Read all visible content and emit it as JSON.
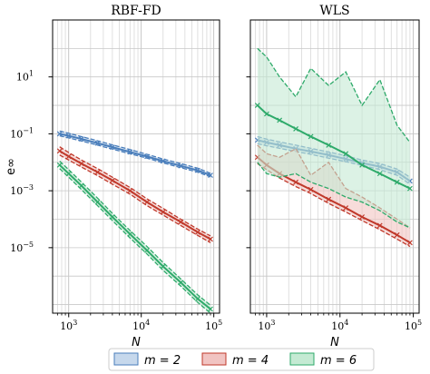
{
  "chart_data": [
    {
      "type": "line",
      "title": "RBF-FD",
      "xlabel": "N",
      "ylabel": "e∞",
      "xscale": "log",
      "yscale": "log",
      "xlim": [
        600,
        120000
      ],
      "ylim": [
        5e-08,
        1000
      ],
      "grid": true,
      "x": [
        750,
        1000,
        1500,
        2500,
        4000,
        7000,
        12000,
        20000,
        35000,
        60000,
        90000
      ],
      "series": [
        {
          "name": "m = 2",
          "color": "#4a7ebb",
          "values": [
            0.1,
            0.085,
            0.066,
            0.047,
            0.034,
            0.023,
            0.016,
            0.011,
            0.0075,
            0.0052,
            0.0035
          ],
          "lower": [
            0.085,
            0.072,
            0.056,
            0.04,
            0.029,
            0.02,
            0.014,
            0.0095,
            0.0065,
            0.0045,
            0.0031
          ],
          "upper": [
            0.125,
            0.105,
            0.08,
            0.057,
            0.041,
            0.028,
            0.019,
            0.013,
            0.009,
            0.0062,
            0.0041
          ]
        },
        {
          "name": "m = 4",
          "color": "#c0392b",
          "values": [
            0.025,
            0.016,
            0.009,
            0.0045,
            0.0023,
            0.001,
            0.0004,
            0.00018,
            8e-05,
            3.5e-05,
            2e-05
          ],
          "lower": [
            0.018,
            0.012,
            0.0068,
            0.0034,
            0.0017,
            0.00076,
            0.0003,
            0.00014,
            6e-05,
            2.7e-05,
            1.5e-05
          ],
          "upper": [
            0.035,
            0.022,
            0.012,
            0.006,
            0.003,
            0.0013,
            0.00052,
            0.00024,
            0.0001,
            4.5e-05,
            2.6e-05
          ]
        },
        {
          "name": "m = 6",
          "color": "#2eaa6a",
          "values": [
            0.008,
            0.004,
            0.0015,
            0.0004,
            0.00012,
            3e-05,
            8e-06,
            2.2e-06,
            6e-07,
            1.6e-07,
            7e-08
          ],
          "lower": [
            0.006,
            0.003,
            0.0011,
            0.0003,
            9e-05,
            2.2e-05,
            6e-06,
            1.6e-06,
            4.5e-07,
            1.2e-07,
            5e-08
          ],
          "upper": [
            0.011,
            0.0055,
            0.002,
            0.00055,
            0.00016,
            4e-05,
            1.1e-05,
            3e-06,
            8e-07,
            2.2e-07,
            9.5e-08
          ]
        }
      ]
    },
    {
      "type": "line",
      "title": "WLS",
      "xlabel": "N",
      "xscale": "log",
      "yscale": "log",
      "xlim": [
        600,
        120000
      ],
      "ylim": [
        5e-08,
        1000
      ],
      "grid": true,
      "x": [
        750,
        1000,
        1500,
        2500,
        4000,
        7000,
        12000,
        20000,
        35000,
        60000,
        90000
      ],
      "series": [
        {
          "name": "m = 2",
          "color": "#4a7ebb",
          "values": [
            0.06,
            0.05,
            0.04,
            0.03,
            0.024,
            0.018,
            0.013,
            0.0095,
            0.007,
            0.0045,
            0.0022
          ],
          "lower": [
            0.045,
            0.038,
            0.031,
            0.024,
            0.019,
            0.014,
            0.0105,
            0.0078,
            0.0055,
            0.0035,
            0.0017
          ],
          "upper": [
            0.08,
            0.065,
            0.052,
            0.04,
            0.031,
            0.023,
            0.017,
            0.012,
            0.009,
            0.0058,
            0.003
          ]
        },
        {
          "name": "m = 4",
          "color": "#c0392b",
          "values": [
            0.015,
            0.008,
            0.004,
            0.002,
            0.0011,
            0.0005,
            0.00025,
            0.00012,
            6e-05,
            2.8e-05,
            1.5e-05
          ],
          "lower": [
            0.009,
            0.0055,
            0.0028,
            0.0014,
            0.0008,
            0.00036,
            0.00018,
            9e-05,
            4.3e-05,
            2e-05,
            1.1e-05
          ],
          "upper": [
            0.04,
            0.02,
            0.015,
            0.03,
            0.0035,
            0.01,
            0.0012,
            0.0006,
            0.00025,
            0.0001,
            5e-05
          ]
        },
        {
          "name": "m = 6",
          "color": "#2eaa6a",
          "values": [
            1.0,
            0.5,
            0.3,
            0.15,
            0.08,
            0.04,
            0.02,
            0.008,
            0.004,
            0.002,
            0.0012
          ],
          "lower": [
            0.01,
            0.004,
            0.003,
            0.004,
            0.002,
            0.0012,
            0.0006,
            0.0004,
            0.0002,
            8e-05,
            5e-05
          ],
          "upper": [
            100,
            50,
            10,
            2,
            20,
            5,
            15,
            1,
            8,
            0.2,
            0.05
          ]
        }
      ]
    }
  ],
  "legend": {
    "placement": "bottom",
    "entries": [
      {
        "label": "m = 2",
        "color": "#4a7ebb",
        "fill": "#c6d8ec"
      },
      {
        "label": "m = 4",
        "color": "#c0392b",
        "fill": "#f1c4c2"
      },
      {
        "label": "m = 6",
        "color": "#2eaa6a",
        "fill": "#c4ead3"
      }
    ]
  },
  "x_ticks": [
    {
      "value": 1000,
      "base": "10",
      "exp": "3"
    },
    {
      "value": 10000,
      "base": "10",
      "exp": "4"
    },
    {
      "value": 100000,
      "base": "10",
      "exp": "5"
    }
  ],
  "y_ticks": [
    {
      "value": 10,
      "base": "10",
      "exp": "1"
    },
    {
      "value": 0.1,
      "base": "10",
      "exp": "−1"
    },
    {
      "value": 0.001,
      "base": "10",
      "exp": "−3"
    },
    {
      "value": 1e-05,
      "base": "10",
      "exp": "−5"
    }
  ]
}
